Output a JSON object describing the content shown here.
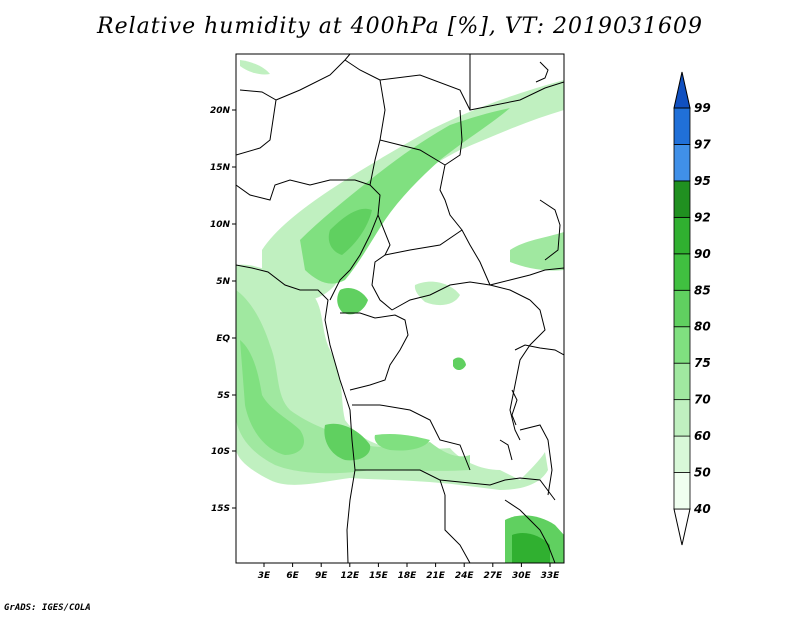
{
  "title": "Relative humidity at 400hPa [%], VT: 2019031609",
  "credit": "GrADS: IGES/COLA",
  "map": {
    "lat_ticks": [
      "20N",
      "15N",
      "10N",
      "5N",
      "EQ",
      "5S",
      "10S",
      "15S"
    ],
    "lon_ticks": [
      "3E",
      "6E",
      "9E",
      "12E",
      "15E",
      "18E",
      "21E",
      "24E",
      "27E",
      "30E",
      "33E"
    ]
  },
  "colorbar": {
    "levels": [
      "40",
      "50",
      "60",
      "70",
      "75",
      "80",
      "85",
      "90",
      "92",
      "95",
      "97",
      "99"
    ],
    "colors": [
      "#f0fff0",
      "#d8f8d8",
      "#c0f0c0",
      "#a0e8a0",
      "#80e080",
      "#60d060",
      "#40c040",
      "#30b030",
      "#209020",
      "#4090e8",
      "#2070d8",
      "#1050c0"
    ]
  }
}
